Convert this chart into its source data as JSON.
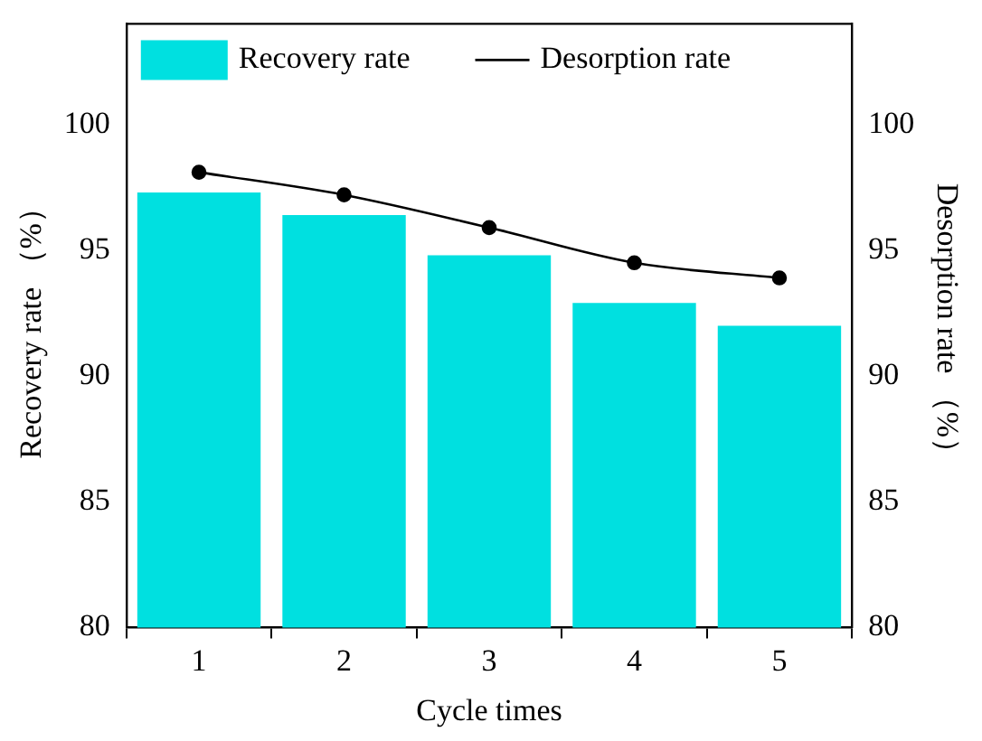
{
  "chart_data": {
    "type": "bar",
    "xlabel": "Cycle times",
    "ylabel": "Recovery rate （%）",
    "y2label": "Desorption rate （%）",
    "categories": [
      "1",
      "2",
      "3",
      "4",
      "5"
    ],
    "series": [
      {
        "name": "Recovery rate",
        "color": "#00e0e0",
        "values": [
          97.3,
          96.4,
          94.8,
          92.9,
          92.0
        ]
      },
      {
        "name": "Desorption rate",
        "type": "line",
        "axis": "y2",
        "color": "#000000",
        "marker": "circle",
        "values": [
          98.1,
          97.2,
          95.9,
          94.5,
          93.9
        ]
      }
    ],
    "ylim": [
      80,
      104
    ],
    "yticks": [
      80,
      85,
      90,
      95,
      100
    ],
    "y2lim": [
      80,
      104
    ],
    "y2ticks": [
      80,
      85,
      90,
      95,
      100
    ],
    "grid": false,
    "legend": "top"
  }
}
